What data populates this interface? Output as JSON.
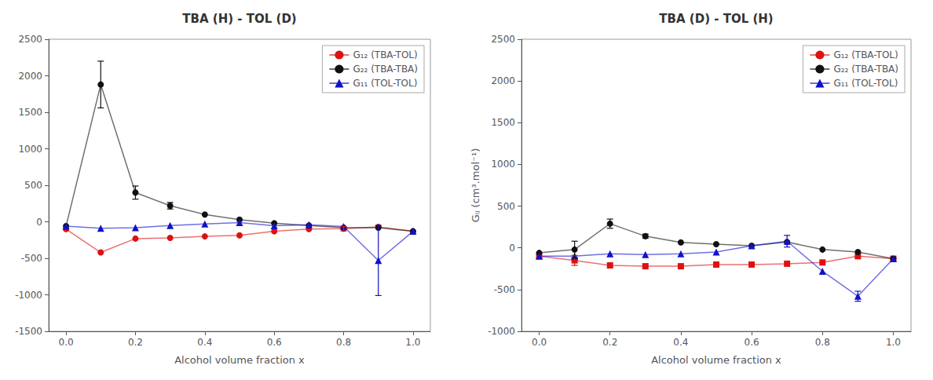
{
  "chart_data": [
    {
      "type": "line",
      "title": "TBA (H) - TOL (D)",
      "x_label": "Alcohol volume fraction x",
      "x": [
        0.0,
        0.1,
        0.2,
        0.3,
        0.4,
        0.5,
        0.6,
        0.7,
        0.8,
        0.9,
        1.0
      ],
      "series": [
        {
          "name": "G₁₂ (TBA-TOL)",
          "color": "#dd1111",
          "marker": "circle",
          "values": [
            -100,
            -420,
            -230,
            -220,
            -200,
            -185,
            -130,
            -100,
            -95,
            -70,
            -130
          ],
          "errors": [
            0,
            0,
            0,
            0,
            0,
            0,
            0,
            0,
            30,
            0,
            0
          ]
        },
        {
          "name": "G₂₂ (TBA-TBA)",
          "color": "#111111",
          "marker": "circle",
          "values": [
            -60,
            1880,
            400,
            220,
            100,
            30,
            -20,
            -50,
            -80,
            -80,
            -130
          ],
          "errors": [
            0,
            320,
            90,
            45,
            0,
            0,
            0,
            0,
            0,
            0,
            0
          ]
        },
        {
          "name": "G₁₁ (TOL-TOL)",
          "color": "#1111cc",
          "marker": "triangle",
          "values": [
            -60,
            -90,
            -80,
            -50,
            -30,
            -10,
            -55,
            -40,
            -65,
            -530,
            -130
          ],
          "errors": [
            0,
            0,
            0,
            0,
            0,
            0,
            0,
            0,
            0,
            480,
            0
          ]
        }
      ],
      "xlim": [
        -0.05,
        1.05
      ],
      "xticks": [
        {
          "value": 0,
          "label": "0.0"
        },
        0.2,
        0.4,
        0.6,
        0.8,
        {
          "value": 1,
          "label": "1.0"
        }
      ],
      "ylim": [
        -1500,
        2500
      ],
      "yticks": [
        -1500,
        -1000,
        -500,
        0,
        500,
        1000,
        1500,
        2000,
        2500
      ],
      "legend": "upper right",
      "grid": false
    },
    {
      "type": "line",
      "title": "TBA (D) - TOL (H)",
      "x_label": "Alcohol volume fraction x",
      "y_label": "Gᵢⱼ (cm³.mol⁻¹)",
      "x": [
        0.0,
        0.1,
        0.2,
        0.3,
        0.4,
        0.5,
        0.6,
        0.7,
        0.8,
        0.9,
        1.0
      ],
      "series": [
        {
          "name": "G₁₂ (TBA-TOL)",
          "color": "#dd1111",
          "marker": "square",
          "values": [
            -100,
            -150,
            -210,
            -220,
            -220,
            -200,
            -200,
            -190,
            -175,
            -100,
            -130
          ],
          "errors": [
            0,
            60,
            0,
            0,
            0,
            0,
            0,
            0,
            0,
            0,
            0
          ]
        },
        {
          "name": "G₂₂ (TBA-TBA)",
          "color": "#111111",
          "marker": "circle",
          "values": [
            -60,
            -20,
            290,
            140,
            65,
            45,
            25,
            70,
            -20,
            -50,
            -130
          ],
          "errors": [
            0,
            100,
            55,
            25,
            0,
            0,
            0,
            0,
            0,
            0,
            0
          ]
        },
        {
          "name": "G₁₁ (TOL-TOL)",
          "color": "#1111cc",
          "marker": "triangle",
          "values": [
            -100,
            -100,
            -70,
            -80,
            -70,
            -50,
            25,
            80,
            -280,
            -580,
            -130
          ],
          "errors": [
            0,
            0,
            0,
            0,
            0,
            0,
            0,
            70,
            0,
            60,
            0
          ]
        }
      ],
      "xlim": [
        -0.05,
        1.05
      ],
      "xticks": [
        {
          "value": 0,
          "label": "0.0"
        },
        0.2,
        0.4,
        0.6,
        0.8,
        {
          "value": 1,
          "label": "1.0"
        }
      ],
      "ylim": [
        -1000,
        2500
      ],
      "yticks": [
        -1000,
        -500,
        0,
        500,
        1000,
        1500,
        2000,
        2500
      ],
      "legend": "upper right",
      "grid": false
    }
  ]
}
